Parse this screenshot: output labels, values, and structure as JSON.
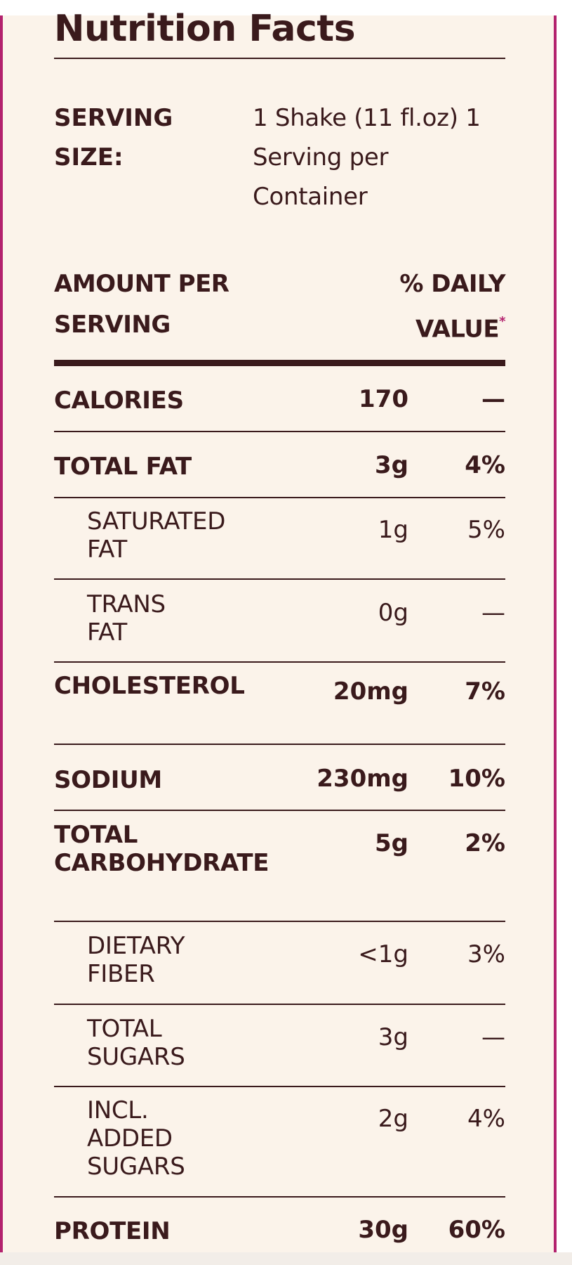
{
  "label": {
    "title": "Nutrition Facts",
    "serving_size_label": "SERVING SIZE:",
    "serving_size_value": "1 Shake (11 fl.oz) 1 Serving per Container",
    "amount_per_serving_header": "AMOUNT PER SERVING",
    "daily_value_header": "% DAILY VALUE",
    "daily_value_marker": "*"
  },
  "nutrients": [
    {
      "name": "CALORIES",
      "amount": "170",
      "dv": "—",
      "sub": false
    },
    {
      "name": "TOTAL FAT",
      "amount": "3g",
      "dv": "4%",
      "sub": false
    },
    {
      "name": "SATURATED FAT",
      "amount": "1g",
      "dv": "5%",
      "sub": true
    },
    {
      "name": "TRANS FAT",
      "amount": "0g",
      "dv": "—",
      "sub": true
    },
    {
      "name": "CHOLESTEROL",
      "amount": "20mg",
      "dv": "7%",
      "sub": false
    },
    {
      "name": "SODIUM",
      "amount": "230mg",
      "dv": "10%",
      "sub": false
    },
    {
      "name": "TOTAL CARBOHYDRATE",
      "amount": "5g",
      "dv": "2%",
      "sub": false
    },
    {
      "name": "DIETARY FIBER",
      "amount": "<1g",
      "dv": "3%",
      "sub": true
    },
    {
      "name": "TOTAL SUGARS",
      "amount": "3g",
      "dv": "—",
      "sub": true
    },
    {
      "name": "INCL. ADDED SUGARS",
      "amount": "2g",
      "dv": "4%",
      "sub": true
    },
    {
      "name": "PROTEIN",
      "amount": "30g",
      "dv": "60%",
      "sub": false
    }
  ],
  "colors": {
    "text": "#3a1a1c",
    "background": "#fbf3ea",
    "accent_border": "#b3226e"
  }
}
